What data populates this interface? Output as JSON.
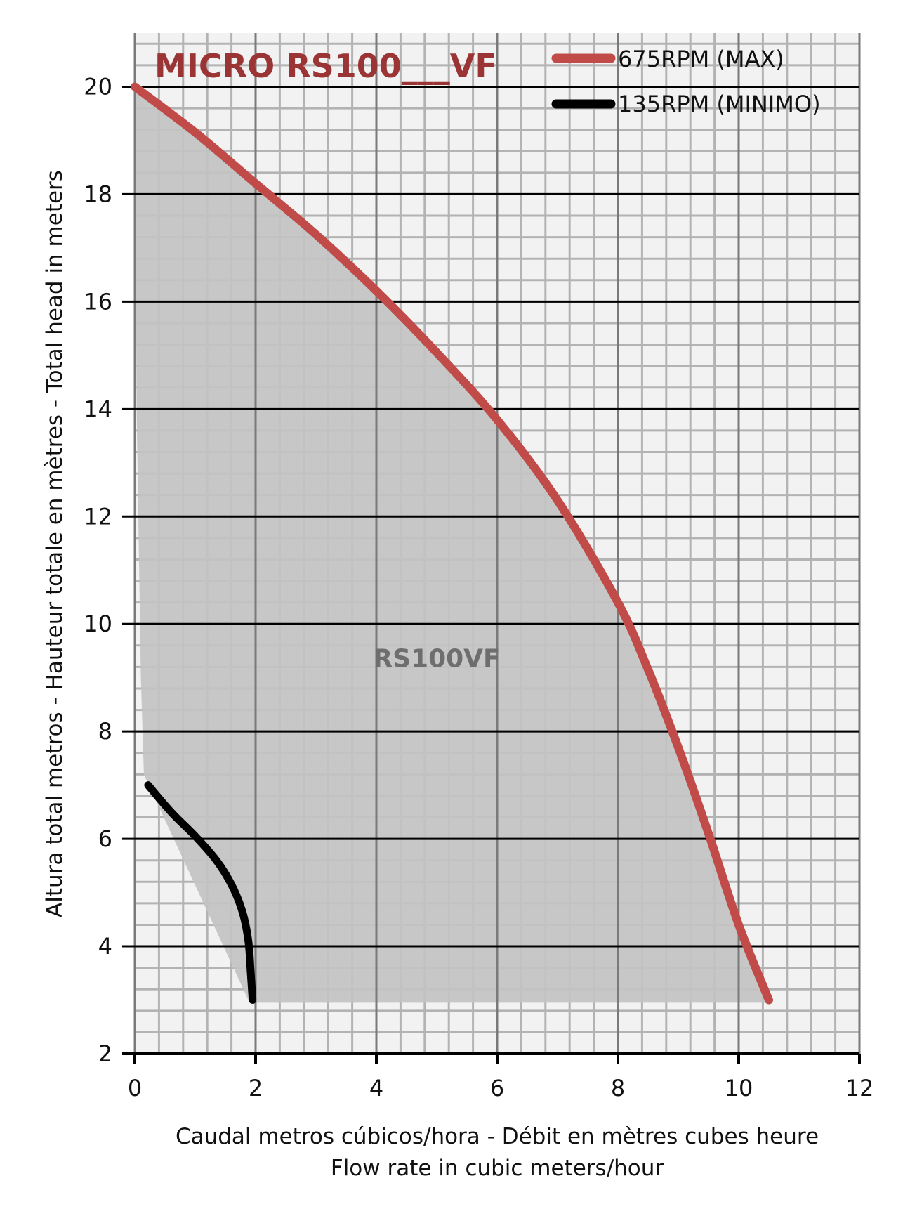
{
  "chart_data": {
    "type": "line",
    "title": "MICRO RS100___VF",
    "xlabel_lines": [
      "Caudal metros cúbicos/hora - Débit en mètres cubes heure",
      "Flow rate in cubic meters/hour"
    ],
    "ylabel": "Altura total metros - Hauteur totale en mètres - Total head in meters",
    "xlim": [
      0,
      12
    ],
    "ylim": [
      2,
      21
    ],
    "x_ticks": [
      0,
      2,
      4,
      6,
      8,
      10,
      12
    ],
    "y_ticks": [
      2,
      4,
      6,
      8,
      10,
      12,
      14,
      16,
      18,
      20
    ],
    "x_minor_step": 0.4,
    "y_minor_step": 0.4,
    "grid": true,
    "legend_placement": "top-right",
    "region_label": "RS100VF",
    "region": {
      "color": "#c3c3c3",
      "boundary": [
        [
          0,
          20
        ],
        [
          0.03,
          14
        ],
        [
          0.1,
          9
        ],
        [
          0.15,
          7.2
        ],
        [
          1.9,
          2.95
        ],
        [
          10.5,
          2.95
        ]
      ]
    },
    "series": [
      {
        "name": "675RPM (MAX)",
        "color": "#c04b48",
        "x": [
          0,
          1,
          2,
          3,
          4,
          5,
          6,
          7,
          8,
          8.5,
          9,
          9.5,
          10,
          10.5
        ],
        "y": [
          20,
          19.15,
          18.2,
          17.25,
          16.2,
          15.05,
          13.8,
          12.3,
          10.4,
          9.15,
          7.7,
          6.1,
          4.4,
          3
        ]
      },
      {
        "name": "135RPM (MINIMO)",
        "color": "#000000",
        "x": [
          0.22,
          0.6,
          1.0,
          1.35,
          1.6,
          1.78,
          1.88,
          1.92,
          1.95
        ],
        "y": [
          7,
          6.5,
          6.05,
          5.6,
          5.15,
          4.65,
          4.1,
          3.5,
          3
        ]
      }
    ]
  }
}
